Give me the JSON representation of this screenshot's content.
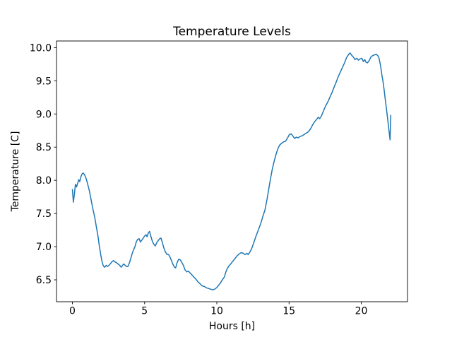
{
  "figure": {
    "background": "#ffffff",
    "frame_color": "#000000"
  },
  "chart_data": {
    "type": "line",
    "title": "Temperature Levels",
    "xlabel": "Hours [h]",
    "ylabel": "Temperature [C]",
    "xlim": [
      -1.1,
      23.2
    ],
    "ylim": [
      6.17,
      10.1
    ],
    "xticks": [
      0,
      5,
      10,
      15,
      20
    ],
    "xtick_labels": [
      "0",
      "5",
      "10",
      "15",
      "20"
    ],
    "yticks": [
      6.5,
      7.0,
      7.5,
      8.0,
      8.5,
      9.0,
      9.5,
      10.0
    ],
    "ytick_labels": [
      "6.5",
      "7.0",
      "7.5",
      "8.0",
      "8.5",
      "9.0",
      "9.5",
      "10.0"
    ],
    "grid": false,
    "legend": null,
    "line_color": "#1f77b4",
    "line_width": 1.5,
    "series": [
      {
        "name": "temperature",
        "points": [
          [
            0.0,
            7.86
          ],
          [
            0.07,
            7.67
          ],
          [
            0.14,
            7.8
          ],
          [
            0.21,
            7.94
          ],
          [
            0.29,
            7.9
          ],
          [
            0.37,
            7.96
          ],
          [
            0.44,
            8.01
          ],
          [
            0.51,
            7.98
          ],
          [
            0.58,
            8.05
          ],
          [
            0.68,
            8.1
          ],
          [
            0.75,
            8.11
          ],
          [
            0.85,
            8.08
          ],
          [
            0.95,
            8.03
          ],
          [
            1.06,
            7.94
          ],
          [
            1.18,
            7.84
          ],
          [
            1.3,
            7.7
          ],
          [
            1.43,
            7.56
          ],
          [
            1.55,
            7.44
          ],
          [
            1.66,
            7.3
          ],
          [
            1.77,
            7.16
          ],
          [
            1.86,
            7.02
          ],
          [
            1.96,
            6.88
          ],
          [
            2.06,
            6.77
          ],
          [
            2.14,
            6.71
          ],
          [
            2.24,
            6.69
          ],
          [
            2.34,
            6.72
          ],
          [
            2.43,
            6.7
          ],
          [
            2.54,
            6.72
          ],
          [
            2.66,
            6.75
          ],
          [
            2.77,
            6.78
          ],
          [
            2.85,
            6.79
          ],
          [
            2.95,
            6.77
          ],
          [
            3.04,
            6.76
          ],
          [
            3.16,
            6.74
          ],
          [
            3.27,
            6.72
          ],
          [
            3.38,
            6.69
          ],
          [
            3.48,
            6.72
          ],
          [
            3.55,
            6.74
          ],
          [
            3.65,
            6.72
          ],
          [
            3.75,
            6.7
          ],
          [
            3.84,
            6.7
          ],
          [
            3.94,
            6.75
          ],
          [
            4.04,
            6.82
          ],
          [
            4.13,
            6.89
          ],
          [
            4.23,
            6.95
          ],
          [
            4.33,
            7.0
          ],
          [
            4.42,
            7.07
          ],
          [
            4.52,
            7.11
          ],
          [
            4.62,
            7.12
          ],
          [
            4.71,
            7.07
          ],
          [
            4.81,
            7.1
          ],
          [
            4.91,
            7.13
          ],
          [
            5.0,
            7.16
          ],
          [
            5.1,
            7.18
          ],
          [
            5.17,
            7.15
          ],
          [
            5.26,
            7.21
          ],
          [
            5.34,
            7.23
          ],
          [
            5.44,
            7.15
          ],
          [
            5.54,
            7.08
          ],
          [
            5.63,
            7.04
          ],
          [
            5.74,
            7.01
          ],
          [
            5.84,
            7.06
          ],
          [
            5.94,
            7.09
          ],
          [
            6.04,
            7.12
          ],
          [
            6.13,
            7.13
          ],
          [
            6.23,
            7.06
          ],
          [
            6.33,
            6.98
          ],
          [
            6.42,
            6.93
          ],
          [
            6.55,
            6.88
          ],
          [
            6.66,
            6.88
          ],
          [
            6.76,
            6.84
          ],
          [
            6.86,
            6.79
          ],
          [
            6.95,
            6.74
          ],
          [
            7.07,
            6.69
          ],
          [
            7.15,
            6.68
          ],
          [
            7.25,
            6.76
          ],
          [
            7.36,
            6.81
          ],
          [
            7.47,
            6.8
          ],
          [
            7.58,
            6.76
          ],
          [
            7.68,
            6.72
          ],
          [
            7.8,
            6.65
          ],
          [
            7.92,
            6.62
          ],
          [
            8.04,
            6.63
          ],
          [
            8.16,
            6.6
          ],
          [
            8.29,
            6.57
          ],
          [
            8.42,
            6.54
          ],
          [
            8.55,
            6.51
          ],
          [
            8.69,
            6.47
          ],
          [
            8.84,
            6.44
          ],
          [
            8.98,
            6.41
          ],
          [
            9.13,
            6.4
          ],
          [
            9.27,
            6.38
          ],
          [
            9.42,
            6.37
          ],
          [
            9.56,
            6.36
          ],
          [
            9.71,
            6.35
          ],
          [
            9.85,
            6.36
          ],
          [
            9.98,
            6.38
          ],
          [
            10.09,
            6.41
          ],
          [
            10.24,
            6.45
          ],
          [
            10.38,
            6.5
          ],
          [
            10.51,
            6.54
          ],
          [
            10.63,
            6.62
          ],
          [
            10.72,
            6.67
          ],
          [
            10.84,
            6.71
          ],
          [
            10.96,
            6.74
          ],
          [
            11.11,
            6.78
          ],
          [
            11.25,
            6.82
          ],
          [
            11.4,
            6.86
          ],
          [
            11.54,
            6.89
          ],
          [
            11.69,
            6.91
          ],
          [
            11.83,
            6.9
          ],
          [
            11.96,
            6.88
          ],
          [
            12.08,
            6.9
          ],
          [
            12.17,
            6.88
          ],
          [
            12.29,
            6.92
          ],
          [
            12.41,
            6.97
          ],
          [
            12.56,
            7.06
          ],
          [
            12.7,
            7.15
          ],
          [
            12.87,
            7.25
          ],
          [
            13.04,
            7.35
          ],
          [
            13.19,
            7.46
          ],
          [
            13.33,
            7.55
          ],
          [
            13.48,
            7.72
          ],
          [
            13.6,
            7.88
          ],
          [
            13.72,
            8.03
          ],
          [
            13.83,
            8.16
          ],
          [
            13.96,
            8.28
          ],
          [
            14.08,
            8.38
          ],
          [
            14.22,
            8.47
          ],
          [
            14.34,
            8.53
          ],
          [
            14.49,
            8.56
          ],
          [
            14.63,
            8.58
          ],
          [
            14.76,
            8.59
          ],
          [
            14.9,
            8.64
          ],
          [
            15.02,
            8.69
          ],
          [
            15.15,
            8.7
          ],
          [
            15.26,
            8.67
          ],
          [
            15.38,
            8.63
          ],
          [
            15.5,
            8.65
          ],
          [
            15.63,
            8.64
          ],
          [
            15.75,
            8.66
          ],
          [
            15.89,
            8.67
          ],
          [
            16.04,
            8.69
          ],
          [
            16.18,
            8.71
          ],
          [
            16.33,
            8.73
          ],
          [
            16.47,
            8.77
          ],
          [
            16.62,
            8.83
          ],
          [
            16.76,
            8.88
          ],
          [
            16.91,
            8.92
          ],
          [
            17.02,
            8.95
          ],
          [
            17.12,
            8.93
          ],
          [
            17.24,
            8.97
          ],
          [
            17.39,
            9.05
          ],
          [
            17.53,
            9.12
          ],
          [
            17.68,
            9.18
          ],
          [
            17.82,
            9.25
          ],
          [
            17.97,
            9.32
          ],
          [
            18.11,
            9.4
          ],
          [
            18.26,
            9.48
          ],
          [
            18.4,
            9.56
          ],
          [
            18.55,
            9.63
          ],
          [
            18.69,
            9.7
          ],
          [
            18.84,
            9.77
          ],
          [
            18.98,
            9.85
          ],
          [
            19.13,
            9.9
          ],
          [
            19.22,
            9.92
          ],
          [
            19.32,
            9.89
          ],
          [
            19.44,
            9.86
          ],
          [
            19.56,
            9.82
          ],
          [
            19.69,
            9.84
          ],
          [
            19.8,
            9.81
          ],
          [
            19.92,
            9.83
          ],
          [
            20.04,
            9.84
          ],
          [
            20.14,
            9.79
          ],
          [
            20.24,
            9.82
          ],
          [
            20.33,
            9.78
          ],
          [
            20.43,
            9.77
          ],
          [
            20.56,
            9.81
          ],
          [
            20.67,
            9.86
          ],
          [
            20.79,
            9.88
          ],
          [
            20.91,
            9.89
          ],
          [
            21.04,
            9.9
          ],
          [
            21.14,
            9.88
          ],
          [
            21.23,
            9.84
          ],
          [
            21.33,
            9.73
          ],
          [
            21.43,
            9.58
          ],
          [
            21.5,
            9.5
          ],
          [
            21.57,
            9.38
          ],
          [
            21.66,
            9.22
          ],
          [
            21.76,
            9.05
          ],
          [
            21.85,
            8.88
          ],
          [
            21.93,
            8.73
          ],
          [
            21.99,
            8.61
          ],
          [
            22.04,
            8.98
          ]
        ]
      }
    ]
  }
}
